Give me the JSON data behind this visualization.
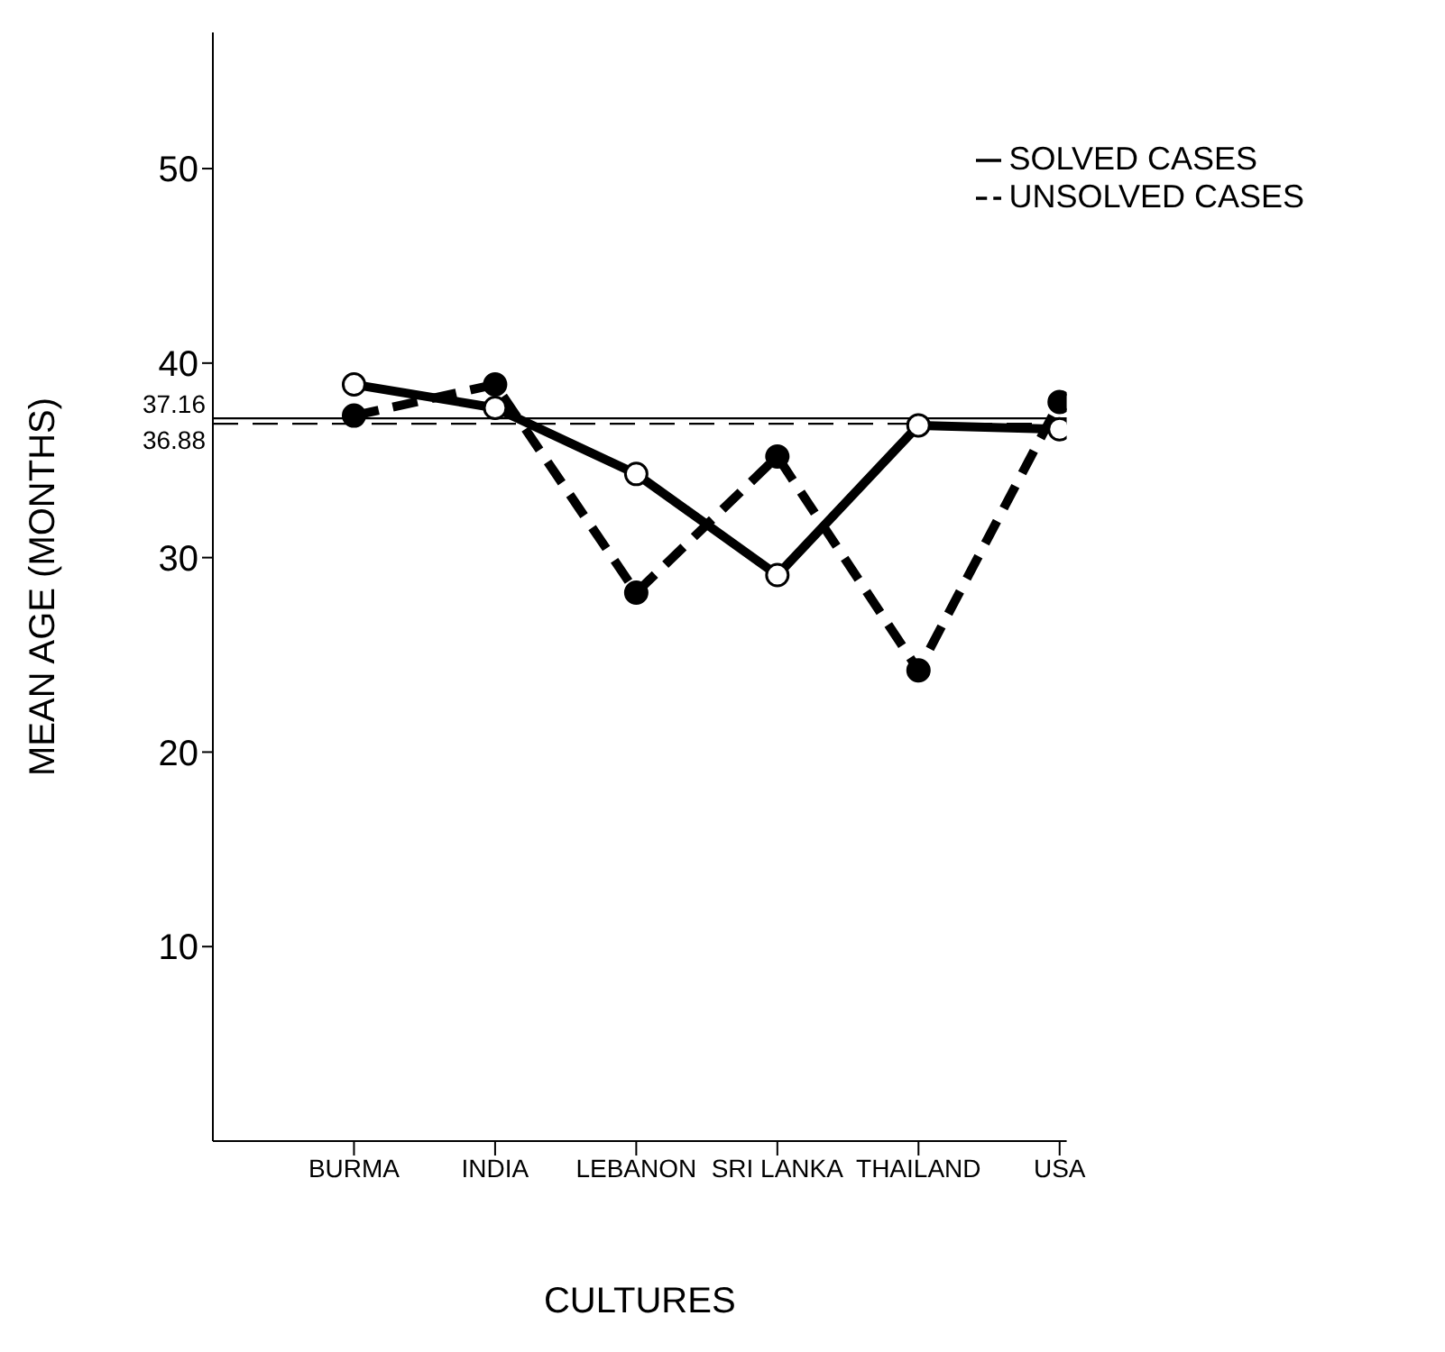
{
  "chart_data": {
    "type": "line",
    "xlabel": "CULTURES",
    "ylabel": "MEAN AGE (MONTHS)",
    "categories": [
      "BURMA",
      "INDIA",
      "LEBANON",
      "SRI LANKA",
      "THAILAND",
      "USA"
    ],
    "series": [
      {
        "name": "SOLVED CASES",
        "color": "#000000",
        "line_style": "solid",
        "values": [
          38.9,
          37.7,
          34.3,
          29.1,
          36.8,
          36.6
        ]
      },
      {
        "name": "UNSOLVED CASES",
        "color": "#000000",
        "line_style": "dashed",
        "values": [
          37.3,
          38.9,
          28.2,
          35.2,
          24.2,
          38.0
        ]
      }
    ],
    "ylim": [
      0,
      57
    ],
    "yticks": [
      10,
      20,
      30,
      40,
      50
    ],
    "ref_lines": [
      {
        "axis": "y",
        "value": 37.16,
        "label": "37.16",
        "line_style": "solid",
        "color": "#000000"
      },
      {
        "axis": "y",
        "value": 36.88,
        "label": "36.88",
        "line_style": "dashed",
        "color": "#000000"
      }
    ],
    "marker": "circle",
    "grid": false,
    "legend": "top right"
  }
}
